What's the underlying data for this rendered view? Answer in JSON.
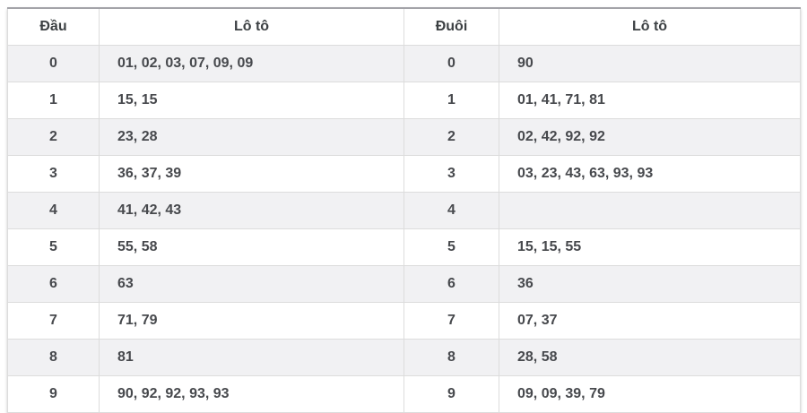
{
  "colors": {
    "stripe_row_bg": "#f1f1f3",
    "row_border": "#dcdcdc",
    "outer_border": "#c6c6c6",
    "top_border": "#a3a3a8",
    "header_text": "#3c4043",
    "cell_text": "#47494d"
  },
  "table": {
    "left": {
      "col1_header": "Đầu",
      "col2_header": "Lô tô",
      "rows": [
        {
          "digit": "0",
          "values": "01, 02, 03, 07, 09, 09"
        },
        {
          "digit": "1",
          "values": "15, 15"
        },
        {
          "digit": "2",
          "values": "23, 28"
        },
        {
          "digit": "3",
          "values": "36, 37, 39"
        },
        {
          "digit": "4",
          "values": "41, 42, 43"
        },
        {
          "digit": "5",
          "values": "55, 58"
        },
        {
          "digit": "6",
          "values": "63"
        },
        {
          "digit": "7",
          "values": "71, 79"
        },
        {
          "digit": "8",
          "values": "81"
        },
        {
          "digit": "9",
          "values": "90, 92, 92, 93, 93"
        }
      ]
    },
    "right": {
      "col1_header": "Đuôi",
      "col2_header": "Lô tô",
      "rows": [
        {
          "digit": "0",
          "values": "90"
        },
        {
          "digit": "1",
          "values": "01, 41, 71, 81"
        },
        {
          "digit": "2",
          "values": "02, 42, 92, 92"
        },
        {
          "digit": "3",
          "values": "03, 23, 43, 63, 93, 93"
        },
        {
          "digit": "4",
          "values": ""
        },
        {
          "digit": "5",
          "values": "15, 15, 55"
        },
        {
          "digit": "6",
          "values": "36"
        },
        {
          "digit": "7",
          "values": "07, 37"
        },
        {
          "digit": "8",
          "values": "28, 58"
        },
        {
          "digit": "9",
          "values": "09, 09, 39, 79"
        }
      ]
    }
  }
}
